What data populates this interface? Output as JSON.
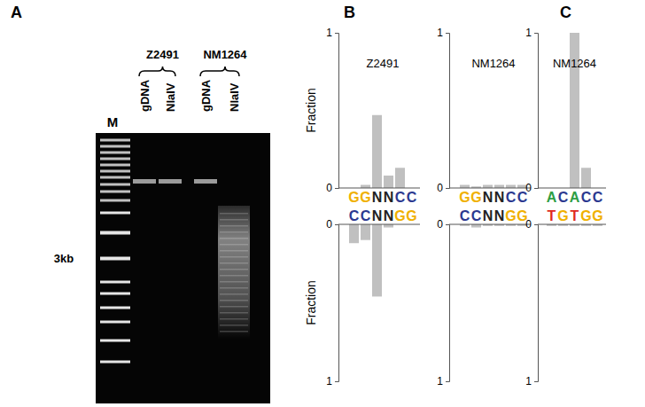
{
  "panels": [
    "A",
    "B",
    "C"
  ],
  "gel": {
    "marker": "M",
    "lanes": [
      "gDNA",
      "NlaIV",
      "gDNA",
      "NlaIV"
    ],
    "strains": [
      "Z2491",
      "NM1264"
    ],
    "size_label": "3kb"
  },
  "chart_data": [
    {
      "type": "bar",
      "title": "Z2491",
      "ylabel": "Fraction",
      "categories": [
        "G",
        "G",
        "N",
        "N",
        "C",
        "C"
      ],
      "values": [
        0,
        0.02,
        0.47,
        0.08,
        0.13,
        0
      ],
      "color": "#c0c0c0",
      "ylim": [
        0,
        1
      ],
      "yticks": [
        0,
        1
      ]
    },
    {
      "type": "bar",
      "ylabel": "Fraction",
      "categories": [
        "C",
        "C",
        "N",
        "N",
        "G",
        "G"
      ],
      "values": [
        0.12,
        0.1,
        0.46,
        0.02,
        0,
        0
      ],
      "color": "#c0c0c0",
      "ylim": [
        0,
        1
      ],
      "yticks": [
        0,
        1
      ]
    },
    {
      "type": "bar",
      "title": "NM1264",
      "categories": [
        "G",
        "G",
        "N",
        "N",
        "C",
        "C"
      ],
      "values": [
        0.02,
        0.01,
        0.02,
        0.02,
        0.02,
        0.02
      ],
      "color": "#c0c0c0",
      "ylim": [
        0,
        1
      ],
      "yticks": [
        0,
        1
      ]
    },
    {
      "type": "bar",
      "categories": [
        "C",
        "C",
        "N",
        "N",
        "G",
        "G"
      ],
      "values": [
        0.01,
        0.02,
        0.01,
        0.01,
        0.01,
        0.01
      ],
      "color": "#c0c0c0",
      "ylim": [
        0,
        1
      ],
      "yticks": [
        0,
        1
      ]
    },
    {
      "type": "bar",
      "title": "NM1264",
      "categories": [
        "A",
        "C",
        "A",
        "C",
        "C"
      ],
      "values": [
        0,
        0,
        1,
        0.13,
        0
      ],
      "color": "#c0c0c0",
      "ylim": [
        0,
        1
      ],
      "yticks": [
        0,
        1
      ]
    },
    {
      "type": "bar",
      "categories": [
        "T",
        "G",
        "T",
        "G",
        "G"
      ],
      "values": [
        0.01,
        0.01,
        0.01,
        0.01,
        0.01
      ],
      "color": "#c0c0c0",
      "ylim": [
        0,
        1
      ],
      "yticks": [
        0,
        1
      ]
    }
  ]
}
